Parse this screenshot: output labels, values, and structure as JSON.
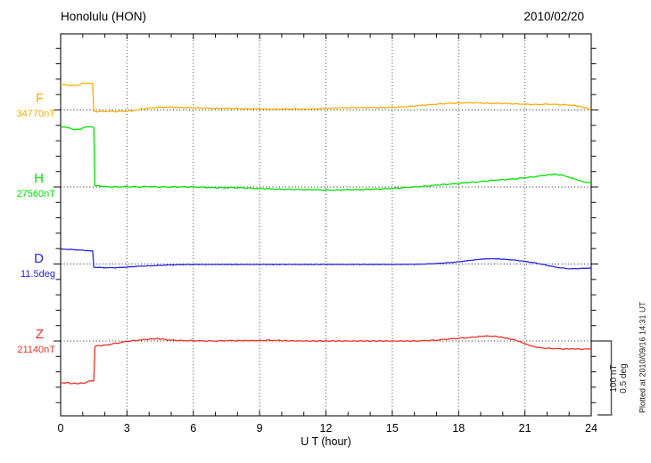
{
  "chart_data": {
    "type": "line",
    "title": "Honolulu (HON)",
    "date": "2010/02/20",
    "xlabel": "U T (hour)",
    "x_range": [
      0,
      24
    ],
    "x_ticks": [
      0,
      3,
      6,
      9,
      12,
      15,
      18,
      21,
      24
    ],
    "grid_hours": [
      3,
      6,
      9,
      12,
      15,
      18,
      21
    ],
    "grid": "dotted vertical every 3 hours, dotted horizontal baseline per component",
    "scale_note": {
      "bar_label_1": "100 nT",
      "bar_label_2": "0.5 deg",
      "meaning": "vertical scale bar: 100 nT (F,H,Z) and 0.5 deg (D) per division"
    },
    "footer": "Plotted at 2010/09/16 14:31 UT",
    "series": [
      {
        "name": "F",
        "ref_label": "34770nT",
        "unit": "nT",
        "color": "#ffae00",
        "points": [
          [
            0,
            32.5
          ],
          [
            0.25,
            33
          ],
          [
            0.5,
            31.5
          ],
          [
            0.75,
            32
          ],
          [
            1.0,
            34.5
          ],
          [
            1.25,
            35
          ],
          [
            1.45,
            34.5
          ],
          [
            1.5,
            -2
          ],
          [
            2,
            -2
          ],
          [
            2.5,
            -2
          ],
          [
            3,
            -1.5
          ],
          [
            3.3,
            -1
          ],
          [
            3.6,
            1
          ],
          [
            4,
            2.5
          ],
          [
            4.5,
            3.5
          ],
          [
            5,
            3.5
          ],
          [
            5.5,
            3
          ],
          [
            6,
            3
          ],
          [
            6.5,
            2.5
          ],
          [
            7,
            2
          ],
          [
            7.5,
            2
          ],
          [
            8,
            2
          ],
          [
            8.5,
            1.5
          ],
          [
            9,
            1.5
          ],
          [
            9.5,
            1
          ],
          [
            10,
            1
          ],
          [
            10.5,
            1.5
          ],
          [
            11,
            1
          ],
          [
            11.5,
            1.5
          ],
          [
            12,
            2
          ],
          [
            12.5,
            2.5
          ],
          [
            13,
            3
          ],
          [
            13.5,
            3
          ],
          [
            14,
            3
          ],
          [
            14.5,
            3
          ],
          [
            15,
            3.5
          ],
          [
            15.5,
            4
          ],
          [
            16,
            5
          ],
          [
            16.5,
            6.5
          ],
          [
            17,
            7.5
          ],
          [
            17.5,
            8.5
          ],
          [
            18,
            9
          ],
          [
            18.5,
            9.5
          ],
          [
            19,
            9
          ],
          [
            19.5,
            8.5
          ],
          [
            20,
            8.5
          ],
          [
            20.5,
            8
          ],
          [
            21,
            7.5
          ],
          [
            21.5,
            7
          ],
          [
            22,
            7.5
          ],
          [
            22.5,
            7
          ],
          [
            23,
            6.5
          ],
          [
            23.4,
            5
          ],
          [
            23.7,
            3
          ],
          [
            24,
            1
          ]
        ]
      },
      {
        "name": "H",
        "ref_label": "27560nT",
        "unit": "nT",
        "color": "#00e300",
        "points": [
          [
            0,
            78
          ],
          [
            0.3,
            77.5
          ],
          [
            0.6,
            74.5
          ],
          [
            0.9,
            75
          ],
          [
            1.1,
            78
          ],
          [
            1.3,
            78.5
          ],
          [
            1.5,
            77.5
          ],
          [
            1.55,
            2
          ],
          [
            2,
            0.5
          ],
          [
            2.5,
            0
          ],
          [
            3,
            0.5
          ],
          [
            3.5,
            0
          ],
          [
            4,
            0.5
          ],
          [
            4.5,
            0
          ],
          [
            5,
            0
          ],
          [
            5.5,
            0
          ],
          [
            6,
            0
          ],
          [
            6.5,
            -0.5
          ],
          [
            7,
            -1
          ],
          [
            7.5,
            -1
          ],
          [
            8,
            -1
          ],
          [
            8.5,
            -1.5
          ],
          [
            9,
            -2
          ],
          [
            9.5,
            -2.5
          ],
          [
            10,
            -3
          ],
          [
            10.5,
            -3
          ],
          [
            11,
            -3.5
          ],
          [
            11.5,
            -3.5
          ],
          [
            12,
            -4
          ],
          [
            12.5,
            -4
          ],
          [
            13,
            -3.5
          ],
          [
            13.5,
            -3.5
          ],
          [
            14,
            -3
          ],
          [
            14.5,
            -2.5
          ],
          [
            15,
            -2
          ],
          [
            15.5,
            -1
          ],
          [
            16,
            0
          ],
          [
            16.5,
            1
          ],
          [
            17,
            2.5
          ],
          [
            17.5,
            3.5
          ],
          [
            18,
            4.5
          ],
          [
            18.5,
            6
          ],
          [
            19,
            7
          ],
          [
            19.5,
            8.5
          ],
          [
            20,
            9.5
          ],
          [
            20.5,
            10.5
          ],
          [
            21,
            12
          ],
          [
            21.5,
            13.5
          ],
          [
            22,
            15.5
          ],
          [
            22.3,
            16.5
          ],
          [
            22.7,
            15.5
          ],
          [
            23,
            12.5
          ],
          [
            23.3,
            10
          ],
          [
            23.6,
            7
          ],
          [
            24,
            5
          ]
        ]
      },
      {
        "name": "D",
        "ref_label": "11.5deg",
        "unit": "deg",
        "color": "#2727e8",
        "points": [
          [
            0,
            0.097
          ],
          [
            0.5,
            0.094
          ],
          [
            1.0,
            0.089
          ],
          [
            1.3,
            0.086
          ],
          [
            1.45,
            0.086
          ],
          [
            1.5,
            -0.021
          ],
          [
            2,
            -0.024
          ],
          [
            2.5,
            -0.024
          ],
          [
            3,
            -0.02
          ],
          [
            3.5,
            -0.015
          ],
          [
            4,
            -0.012
          ],
          [
            4.5,
            -0.009
          ],
          [
            5,
            -0.006
          ],
          [
            5.5,
            -0.004
          ],
          [
            6,
            -0.003
          ],
          [
            7,
            -0.003
          ],
          [
            8,
            -0.003
          ],
          [
            9,
            -0.003
          ],
          [
            10,
            -0.003
          ],
          [
            11,
            -0.003
          ],
          [
            12,
            -0.003
          ],
          [
            13,
            -0.003
          ],
          [
            14,
            -0.003
          ],
          [
            15,
            -0.003
          ],
          [
            16,
            -0.002
          ],
          [
            16.5,
            0
          ],
          [
            17,
            0.003
          ],
          [
            17.5,
            0.008
          ],
          [
            18,
            0.014
          ],
          [
            18.5,
            0.023
          ],
          [
            19,
            0.031
          ],
          [
            19.3,
            0.034
          ],
          [
            19.7,
            0.034
          ],
          [
            20,
            0.031
          ],
          [
            20.5,
            0.026
          ],
          [
            21,
            0.017
          ],
          [
            21.5,
            0.006
          ],
          [
            22,
            -0.009
          ],
          [
            22.5,
            -0.023
          ],
          [
            23,
            -0.031
          ],
          [
            23.5,
            -0.029
          ],
          [
            24,
            -0.026
          ]
        ]
      },
      {
        "name": "Z",
        "ref_label": "21140nT",
        "unit": "nT",
        "color": "#f03024",
        "points": [
          [
            0,
            -54
          ],
          [
            0.15,
            -55
          ],
          [
            0.3,
            -53.5
          ],
          [
            0.45,
            -55.5
          ],
          [
            0.6,
            -54.5
          ],
          [
            0.75,
            -55.5
          ],
          [
            0.9,
            -54.5
          ],
          [
            1.05,
            -55
          ],
          [
            1.2,
            -53
          ],
          [
            1.35,
            -51.5
          ],
          [
            1.5,
            -52
          ],
          [
            1.55,
            -6.5
          ],
          [
            2,
            -5.5
          ],
          [
            2.5,
            -3
          ],
          [
            3,
            -0.5
          ],
          [
            3.5,
            1
          ],
          [
            4,
            2.5
          ],
          [
            4.3,
            3
          ],
          [
            4.6,
            2.5
          ],
          [
            5,
            1
          ],
          [
            5.5,
            0.5
          ],
          [
            6,
            0.5
          ],
          [
            6.5,
            0
          ],
          [
            7,
            0
          ],
          [
            7.5,
            0.5
          ],
          [
            8,
            0.5
          ],
          [
            9,
            0.5
          ],
          [
            9.5,
            1
          ],
          [
            10,
            0.5
          ],
          [
            11,
            0
          ],
          [
            12,
            0
          ],
          [
            13,
            0
          ],
          [
            14,
            0
          ],
          [
            15,
            0
          ],
          [
            16,
            0
          ],
          [
            16.5,
            0.5
          ],
          [
            17,
            1
          ],
          [
            17.5,
            2.5
          ],
          [
            18,
            3.5
          ],
          [
            18.5,
            4.5
          ],
          [
            19,
            6
          ],
          [
            19.3,
            6.5
          ],
          [
            19.7,
            6
          ],
          [
            20,
            4.5
          ],
          [
            20.3,
            3
          ],
          [
            20.7,
            0
          ],
          [
            21,
            -3.5
          ],
          [
            21.3,
            -6.5
          ],
          [
            21.6,
            -8.5
          ],
          [
            22,
            -9.5
          ],
          [
            22.5,
            -10
          ],
          [
            23,
            -10.5
          ],
          [
            23.2,
            -10
          ],
          [
            23.5,
            -10.5
          ],
          [
            24,
            -10.5
          ]
        ]
      }
    ]
  }
}
